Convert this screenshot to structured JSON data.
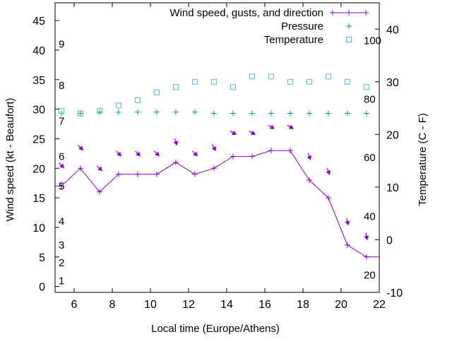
{
  "chart_data": {
    "type": "line",
    "xlabel": "Local time (Europe/Athens)",
    "ylabel": "Wind speed (kt - Beaufort)",
    "y2label": "Temperature (C - F)",
    "xlim": [
      5,
      22
    ],
    "ylim": [
      -1,
      48
    ],
    "y2lim": [
      -10,
      45
    ],
    "grid": false,
    "legend_position": "top-right",
    "x_ticks": [
      "6",
      "8",
      "10",
      "12",
      "14",
      "16",
      "18",
      "20",
      "22"
    ],
    "y_ticks": [
      "0",
      "5",
      "10",
      "15",
      "20",
      "25",
      "30",
      "35",
      "40",
      "45"
    ],
    "y2_ticks": [
      "-10",
      "0",
      "10",
      "20",
      "30",
      "40"
    ],
    "beaufort_labels": [
      {
        "text": "1",
        "y": 1
      },
      {
        "text": "2",
        "y": 4
      },
      {
        "text": "3",
        "y": 7
      },
      {
        "text": "4",
        "y": 11
      },
      {
        "text": "5",
        "y": 17
      },
      {
        "text": "6",
        "y": 22
      },
      {
        "text": "7",
        "y": 28
      },
      {
        "text": "8",
        "y": 34
      },
      {
        "text": "9",
        "y": 41
      }
    ],
    "fahrenheit_labels": [
      {
        "text": "20",
        "y2": -6.7
      },
      {
        "text": "40",
        "y2": 4.4
      },
      {
        "text": "60",
        "y2": 15.6
      },
      {
        "text": "80",
        "y2": 26.7
      },
      {
        "text": "100",
        "y2": 37.8
      }
    ],
    "series": [
      {
        "name": "Wind speed, gusts, and direction",
        "color": "#9400d3",
        "style": "line-cross",
        "x": [
          5,
          5.33,
          6.33,
          7.33,
          8.33,
          9.33,
          10.33,
          11.33,
          12.33,
          13.33,
          14.33,
          15.33,
          16.33,
          17.33,
          18.33,
          19.33,
          20.33,
          21.33,
          22
        ],
        "y": [
          17,
          17,
          20,
          16,
          19,
          19,
          19,
          21,
          19,
          20,
          22,
          22,
          23,
          23,
          18,
          15,
          7,
          5,
          5
        ]
      },
      {
        "name": "Pressure",
        "color": "#009e73",
        "style": "plus",
        "x": [
          5.33,
          6.33,
          7.33,
          8.33,
          9.33,
          10.33,
          11.33,
          12.33,
          13.33,
          14.33,
          15.33,
          16.33,
          17.33,
          18.33,
          19.33,
          20.33,
          21.33
        ],
        "y": [
          29.3,
          29.3,
          29.5,
          29.5,
          29.5,
          29.5,
          29.5,
          29.5,
          29.3,
          29.3,
          29.3,
          29.3,
          29.3,
          29.3,
          29.3,
          29.3,
          29.3
        ]
      },
      {
        "name": "Temperature",
        "color": "#56b4e9",
        "style": "square",
        "axis": "y2",
        "x": [
          5.33,
          6.33,
          7.33,
          8.33,
          9.33,
          10.33,
          11.33,
          12.33,
          13.33,
          14.33,
          15.33,
          16.33,
          17.33,
          18.33,
          19.33,
          20.33,
          21.33
        ],
        "y": [
          24.5,
          24.0,
          24.5,
          25.5,
          26.5,
          28.0,
          29.0,
          30.0,
          30.0,
          29.0,
          31.0,
          31.0,
          30.0,
          30.0,
          31.0,
          30.0,
          29.0
        ]
      }
    ],
    "wind_arrows": {
      "color": "#9400d3",
      "x": [
        5.33,
        6.33,
        7.33,
        8.33,
        9.33,
        10.33,
        11.33,
        12.33,
        13.33,
        14.33,
        15.33,
        16.33,
        17.33,
        18.33,
        19.33,
        20.33,
        21.33
      ],
      "gust": [
        20.5,
        23.5,
        20.0,
        22.5,
        22.5,
        22.5,
        24.5,
        22.5,
        23.5,
        26.0,
        26.0,
        27.0,
        27.0,
        22.0,
        19.5,
        11.0,
        8.5
      ],
      "direction_deg": [
        45,
        45,
        45,
        45,
        45,
        45,
        20,
        45,
        30,
        60,
        60,
        60,
        60,
        20,
        20,
        10,
        10
      ]
    }
  }
}
